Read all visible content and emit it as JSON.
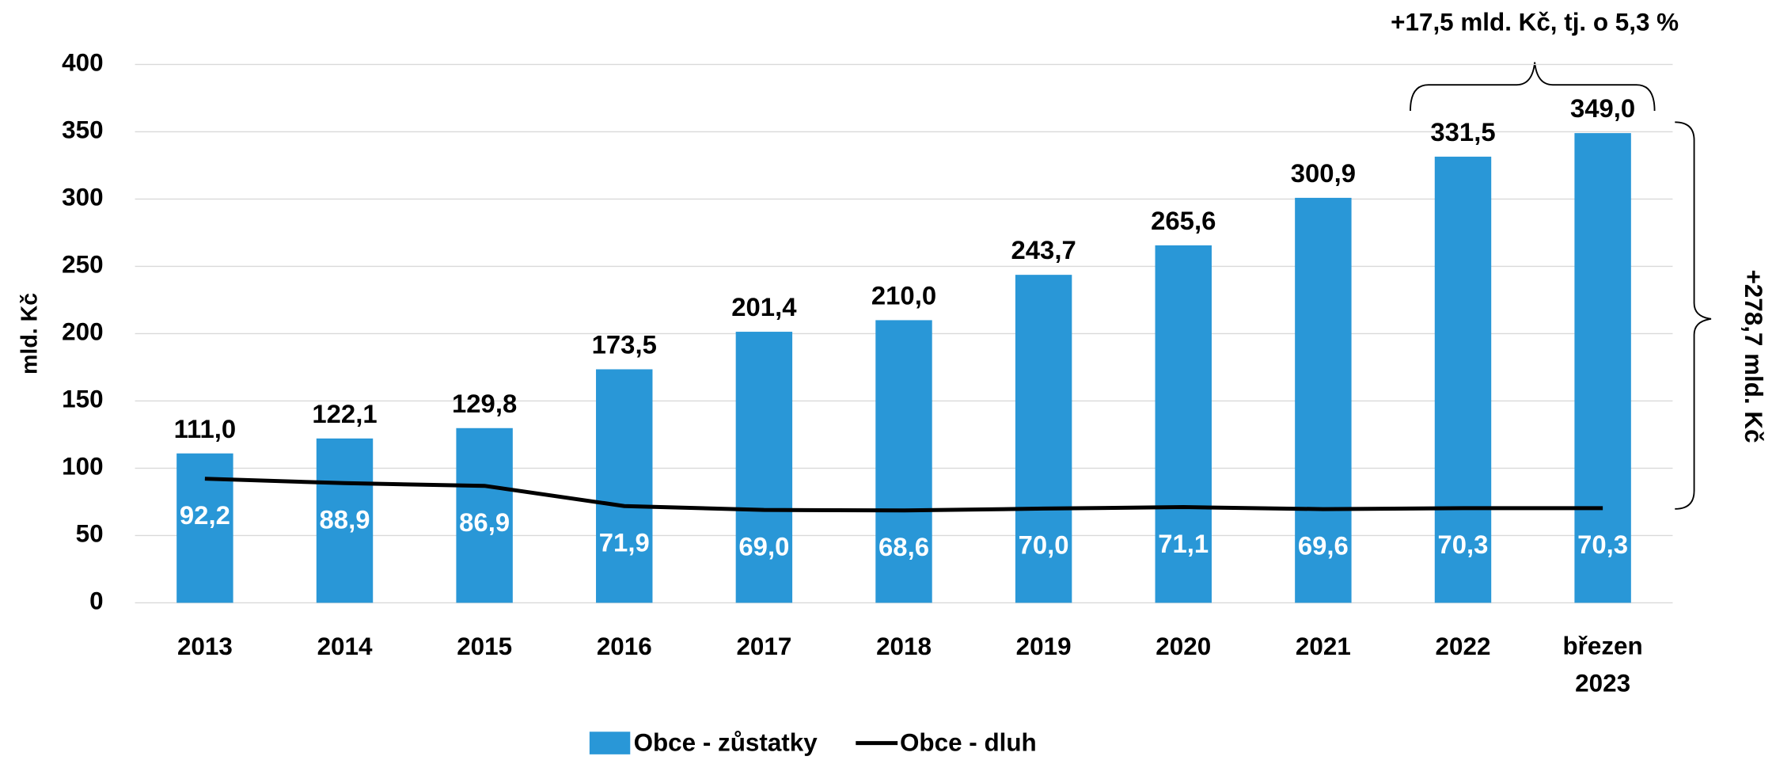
{
  "chart_data": {
    "type": "bar",
    "ylabel": "mld. Kč",
    "categories": [
      "2013",
      "2014",
      "2015",
      "2016",
      "2017",
      "2018",
      "2019",
      "2020",
      "2021",
      "2022",
      "březen 2023"
    ],
    "series": [
      {
        "name": "Obce - zůstatky",
        "type": "bar",
        "color": "#2997d7",
        "values": [
          111.0,
          122.1,
          129.8,
          173.5,
          201.4,
          210.0,
          243.7,
          265.6,
          300.9,
          331.5,
          349.0
        ],
        "value_labels": [
          "111,0",
          "122,1",
          "129,8",
          "173,5",
          "201,4",
          "210,0",
          "243,7",
          "265,6",
          "300,9",
          "331,5",
          "349,0"
        ]
      },
      {
        "name": "Obce - dluh",
        "type": "line",
        "color": "#000000",
        "values": [
          92.2,
          88.9,
          86.9,
          71.9,
          69.0,
          68.6,
          70.0,
          71.1,
          69.6,
          70.3,
          70.3
        ],
        "value_labels": [
          "92,2",
          "88,9",
          "86,9",
          "71,9",
          "69,0",
          "68,6",
          "70,0",
          "71,1",
          "69,6",
          "70,3",
          "70,3"
        ]
      }
    ],
    "ylim": [
      0,
      400
    ],
    "yticks": [
      0,
      50,
      100,
      150,
      200,
      250,
      300,
      350,
      400
    ],
    "grid": true,
    "legend": "bottom",
    "annotations": [
      "+17,5 mld. Kč, tj. o 5,3 %",
      "+278,7 mld. Kč"
    ]
  }
}
